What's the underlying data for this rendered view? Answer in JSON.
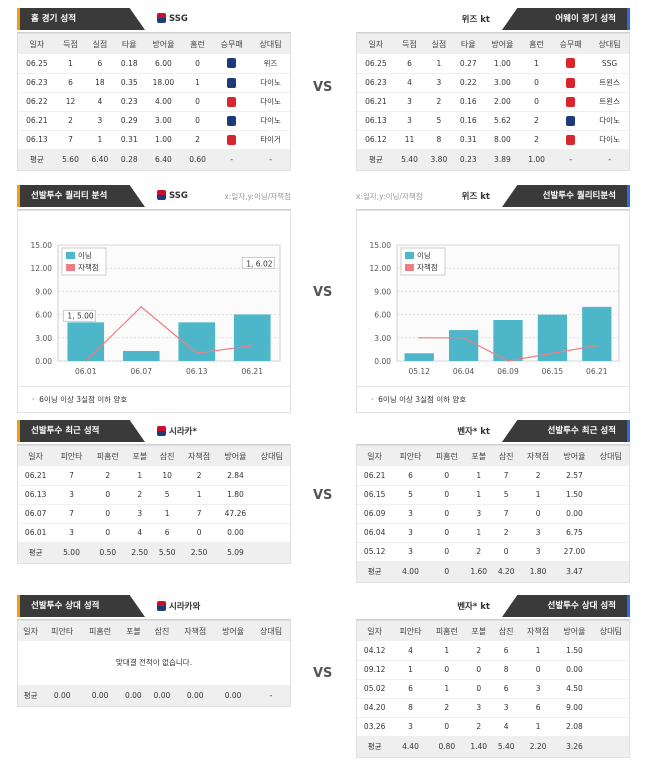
{
  "vs_label": "VS",
  "p1": {
    "left": {
      "tab": "홈 경기 성적",
      "team": "SSG",
      "headers": [
        "일자",
        "득점",
        "실점",
        "타율",
        "방어율",
        "홈런",
        "승무패",
        "상대팀"
      ],
      "rows": [
        [
          "06.25",
          "1",
          "6",
          "0.18",
          "6.00",
          "0",
          "L",
          "위즈"
        ],
        [
          "06.23",
          "6",
          "18",
          "0.35",
          "18.00",
          "1",
          "L",
          "다이노"
        ],
        [
          "06.22",
          "12",
          "4",
          "0.23",
          "4.00",
          "0",
          "W",
          "다이노"
        ],
        [
          "06.21",
          "2",
          "3",
          "0.29",
          "3.00",
          "0",
          "L",
          "다이노"
        ],
        [
          "06.13",
          "7",
          "1",
          "0.31",
          "1.00",
          "2",
          "W",
          "타이거"
        ]
      ],
      "avg": [
        "평균",
        "5.60",
        "6.40",
        "0.28",
        "6.40",
        "0.60",
        "-",
        "-"
      ]
    },
    "right": {
      "tab": "어웨이 경기 성적",
      "team": "위즈 kt",
      "headers": [
        "일자",
        "득점",
        "실점",
        "타율",
        "방어율",
        "홈런",
        "승무패",
        "상대팀"
      ],
      "rows": [
        [
          "06.25",
          "6",
          "1",
          "0.27",
          "1.00",
          "1",
          "W",
          "SSG"
        ],
        [
          "06.23",
          "4",
          "3",
          "0.22",
          "3.00",
          "0",
          "W",
          "트윈스"
        ],
        [
          "06.21",
          "3",
          "2",
          "0.16",
          "2.00",
          "0",
          "W",
          "트윈스"
        ],
        [
          "06.13",
          "3",
          "5",
          "0.16",
          "5.62",
          "2",
          "L",
          "다이노"
        ],
        [
          "06.12",
          "11",
          "8",
          "0.31",
          "8.00",
          "2",
          "W",
          "다이노"
        ]
      ],
      "avg": [
        "평균",
        "5.40",
        "3.80",
        "0.23",
        "3.89",
        "1.00",
        "-",
        "-"
      ]
    }
  },
  "p2": {
    "left": {
      "tab": "선발투수 퀄리티 분석",
      "team": "SSG",
      "hint": "x:일자,y:이닝/자책점",
      "note": "6이닝 이상 3실점 이하 양호"
    },
    "right": {
      "tab": "선발투수 퀄리티분석",
      "team": "위즈 kt",
      "hint": "x:일자,y:이닝/자책점",
      "note": "6이닝 이상 3실점 이하 양호"
    }
  },
  "chart_data": [
    {
      "type": "bar",
      "categories": [
        "06.01",
        "06.07",
        "06.13",
        "06.21"
      ],
      "series": [
        {
          "name": "이닝",
          "type": "bar",
          "values": [
            5.0,
            1.3,
            5.0,
            6.02
          ]
        },
        {
          "name": "자책점",
          "type": "line",
          "values": [
            0,
            7,
            1,
            2
          ]
        }
      ],
      "yticks": [
        "0.00",
        "3.00",
        "6.00",
        "9.00",
        "12.00",
        "15.00"
      ],
      "ylim": [
        0,
        15
      ],
      "labels": [
        "1, 5.00",
        "1, 6.02"
      ],
      "colors": {
        "bar": "#4db6c8",
        "line": "#f07c84"
      }
    },
    {
      "type": "bar",
      "categories": [
        "05.12",
        "06.04",
        "06.09",
        "06.15",
        "06.21"
      ],
      "series": [
        {
          "name": "이닝",
          "type": "bar",
          "values": [
            1.0,
            4.0,
            5.3,
            6.0,
            7.0
          ]
        },
        {
          "name": "자책점",
          "type": "line",
          "values": [
            3,
            3,
            0,
            1,
            2
          ]
        }
      ],
      "yticks": [
        "0.00",
        "3.00",
        "6.00",
        "9.00",
        "12.00",
        "15.00"
      ],
      "ylim": [
        0,
        15
      ],
      "labels": [],
      "colors": {
        "bar": "#4db6c8",
        "line": "#f07c84"
      }
    }
  ],
  "p3": {
    "left": {
      "tab": "선발투수 최근 성적",
      "team": "시라카*",
      "headers": [
        "일자",
        "피안타",
        "피홈런",
        "포볼",
        "삼진",
        "자책점",
        "방어율",
        "상대팀"
      ],
      "rows": [
        [
          "06.21",
          "7",
          "2",
          "1",
          "10",
          "2",
          "2.84",
          ""
        ],
        [
          "06.13",
          "3",
          "0",
          "2",
          "5",
          "1",
          "1.80",
          ""
        ],
        [
          "06.07",
          "7",
          "0",
          "3",
          "1",
          "7",
          "47.26",
          ""
        ],
        [
          "06.01",
          "3",
          "0",
          "4",
          "6",
          "0",
          "0.00",
          ""
        ]
      ],
      "avg": [
        "평균",
        "5.00",
        "0.50",
        "2.50",
        "5.50",
        "2.50",
        "5.09",
        ""
      ]
    },
    "right": {
      "tab": "선발투수 최근 성적",
      "team": "벤자* kt",
      "headers": [
        "일자",
        "피안타",
        "피홈런",
        "포볼",
        "삼진",
        "자책점",
        "방어율",
        "상대팀"
      ],
      "rows": [
        [
          "06.21",
          "6",
          "0",
          "1",
          "7",
          "2",
          "2.57",
          ""
        ],
        [
          "06.15",
          "5",
          "0",
          "1",
          "5",
          "1",
          "1.50",
          ""
        ],
        [
          "06.09",
          "3",
          "0",
          "3",
          "7",
          "0",
          "0.00",
          ""
        ],
        [
          "06.04",
          "3",
          "0",
          "1",
          "2",
          "3",
          "6.75",
          ""
        ],
        [
          "05.12",
          "3",
          "0",
          "2",
          "0",
          "3",
          "27.00",
          ""
        ]
      ],
      "avg": [
        "평균",
        "4.00",
        "0",
        "1.60",
        "4.20",
        "1.80",
        "3.47",
        ""
      ]
    }
  },
  "p4": {
    "left": {
      "tab": "선발투수 상대 성적",
      "team": "시라카와",
      "headers": [
        "일자",
        "피안타",
        "피홈런",
        "포볼",
        "삼진",
        "자책점",
        "방어율",
        "상대팀"
      ],
      "empty": "맞대결 전적이 없습니다.",
      "avg": [
        "평균",
        "0.00",
        "0.00",
        "0.00",
        "0.00",
        "0.00",
        "0.00",
        "-"
      ]
    },
    "right": {
      "tab": "선발투수 상대 성적",
      "team": "벤자* kt",
      "headers": [
        "일자",
        "피안타",
        "피홈런",
        "포볼",
        "삼진",
        "자책점",
        "방어율",
        "상대팀"
      ],
      "rows": [
        [
          "04.12",
          "4",
          "1",
          "2",
          "6",
          "1",
          "1.50",
          ""
        ],
        [
          "09.12",
          "1",
          "0",
          "0",
          "8",
          "0",
          "0.00",
          ""
        ],
        [
          "05.02",
          "6",
          "1",
          "0",
          "6",
          "3",
          "4.50",
          ""
        ],
        [
          "04.20",
          "8",
          "2",
          "3",
          "3",
          "6",
          "9.00",
          ""
        ],
        [
          "03.26",
          "3",
          "0",
          "2",
          "4",
          "1",
          "2.08",
          ""
        ]
      ],
      "avg": [
        "평균",
        "4.40",
        "0.80",
        "1.40",
        "5.40",
        "2.20",
        "3.26",
        ""
      ]
    }
  }
}
